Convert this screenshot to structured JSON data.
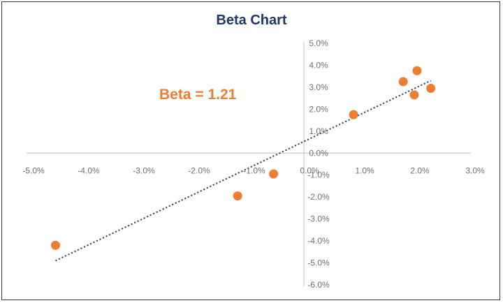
{
  "colors": {
    "title": "#1f3864",
    "annotation": "#ed7d31",
    "points": "#ed7d31",
    "trendline": "#1f3864",
    "axis": "#bfbfbf"
  },
  "chart_data": {
    "type": "scatter",
    "title": "Beta Chart",
    "xlabel": "",
    "ylabel": "",
    "xlim": [
      -5.0,
      3.0
    ],
    "ylim": [
      -6.0,
      5.0
    ],
    "x_ticks": [
      -5.0,
      -4.0,
      -3.0,
      -2.0,
      -1.0,
      0.0,
      1.0,
      2.0,
      3.0
    ],
    "y_ticks": [
      -6.0,
      -5.0,
      -4.0,
      -3.0,
      -2.0,
      -1.0,
      0.0,
      1.0,
      2.0,
      3.0,
      4.0,
      5.0
    ],
    "x_tick_labels": [
      "-5.0%",
      "-4.0%",
      "-3.0%",
      "-2.0%",
      "-1.0%",
      "0.0%",
      "1.0%",
      "2.0%",
      "3.0%"
    ],
    "y_tick_labels": [
      "-6.0%",
      "-5.0%",
      "-4.0%",
      "-3.0%",
      "-2.0%",
      "-1.0%",
      "0.0%",
      "1.0%",
      "2.0%",
      "3.0%",
      "4.0%",
      "5.0%"
    ],
    "grid": false,
    "legend": "none",
    "series": [
      {
        "points": [
          {
            "x": -4.5,
            "y": -4.2
          },
          {
            "x": -1.2,
            "y": -1.95
          },
          {
            "x": -0.55,
            "y": -0.95
          },
          {
            "x": 0.9,
            "y": 1.75
          },
          {
            "x": 1.8,
            "y": 3.25
          },
          {
            "x": 2.05,
            "y": 3.75
          },
          {
            "x": 2.0,
            "y": 2.65
          },
          {
            "x": 2.3,
            "y": 2.95
          }
        ]
      }
    ],
    "trendline": {
      "style": "dotted",
      "from": {
        "x": -4.5,
        "y": -4.9
      },
      "to": {
        "x": 2.3,
        "y": 3.3
      }
    },
    "annotations": [
      {
        "text": "Beta = 1.21"
      }
    ]
  }
}
